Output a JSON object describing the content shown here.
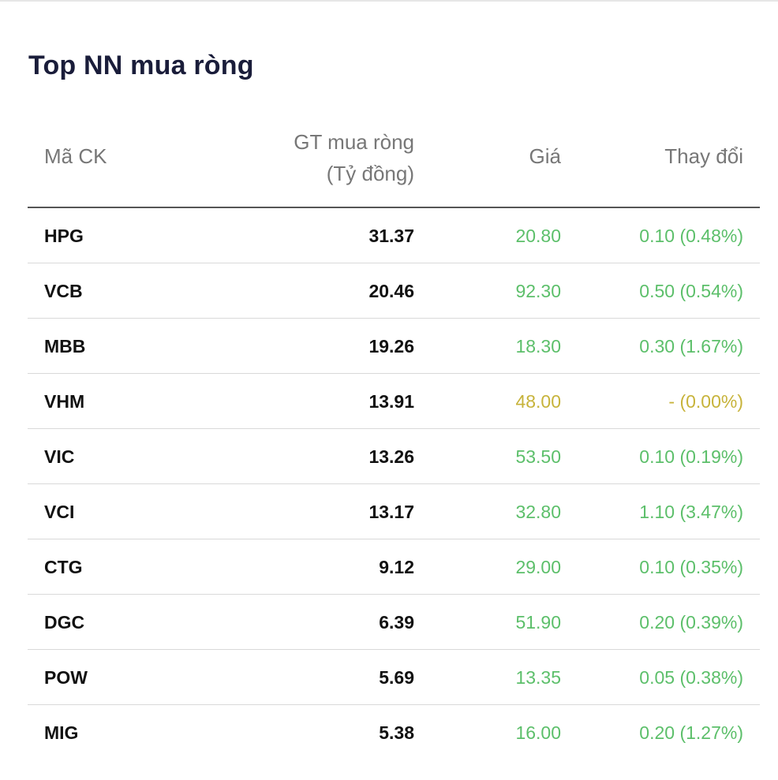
{
  "title": "Top NN mua ròng",
  "columns": {
    "code": "Mã CK",
    "value_line1": "GT mua ròng",
    "value_line2": "(Tỷ đồng)",
    "price": "Giá",
    "change": "Thay đổi"
  },
  "colors": {
    "up": "#5cbf6a",
    "ref": "#c7b33a",
    "text": "#111111",
    "header_text": "#777777"
  },
  "rows": [
    {
      "code": "HPG",
      "value": "31.37",
      "price": "20.80",
      "change": "0.10 (0.48%)",
      "status": "up"
    },
    {
      "code": "VCB",
      "value": "20.46",
      "price": "92.30",
      "change": "0.50 (0.54%)",
      "status": "up"
    },
    {
      "code": "MBB",
      "value": "19.26",
      "price": "18.30",
      "change": "0.30 (1.67%)",
      "status": "up"
    },
    {
      "code": "VHM",
      "value": "13.91",
      "price": "48.00",
      "change": "- (0.00%)",
      "status": "ref"
    },
    {
      "code": "VIC",
      "value": "13.26",
      "price": "53.50",
      "change": "0.10 (0.19%)",
      "status": "up"
    },
    {
      "code": "VCI",
      "value": "13.17",
      "price": "32.80",
      "change": "1.10 (3.47%)",
      "status": "up"
    },
    {
      "code": "CTG",
      "value": "9.12",
      "price": "29.00",
      "change": "0.10 (0.35%)",
      "status": "up"
    },
    {
      "code": "DGC",
      "value": "6.39",
      "price": "51.90",
      "change": "0.20 (0.39%)",
      "status": "up"
    },
    {
      "code": "POW",
      "value": "5.69",
      "price": "13.35",
      "change": "0.05 (0.38%)",
      "status": "up"
    },
    {
      "code": "MIG",
      "value": "5.38",
      "price": "16.00",
      "change": "0.20 (1.27%)",
      "status": "up"
    }
  ]
}
